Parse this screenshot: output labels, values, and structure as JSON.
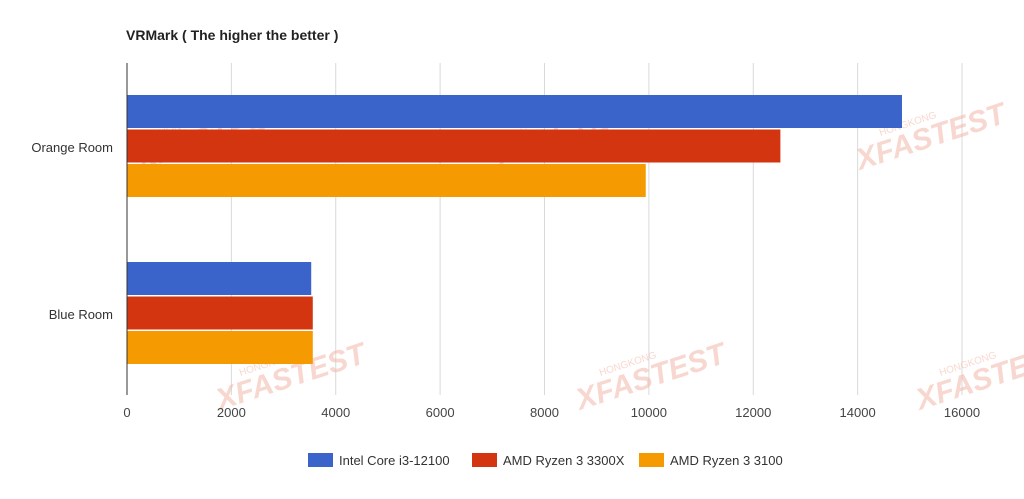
{
  "chart_data": {
    "type": "bar",
    "orientation": "horizontal",
    "title": "VRMark ( The higher the better )",
    "xlabel": "",
    "ylabel": "",
    "categories": [
      "Orange Room",
      "Blue Room"
    ],
    "series": [
      {
        "name": "Intel Core i3-12100",
        "color": "#3a64c9",
        "values": [
          14850,
          3530
        ]
      },
      {
        "name": "AMD Ryzen 3 3300X",
        "color": "#d23510",
        "values": [
          12520,
          3560
        ]
      },
      {
        "name": "AMD Ryzen 3 3100",
        "color": "#f59a00",
        "values": [
          9940,
          3560
        ]
      }
    ],
    "xlim": [
      0,
      16000
    ],
    "xticks": [
      0,
      2000,
      4000,
      6000,
      8000,
      10000,
      12000,
      14000,
      16000
    ],
    "xtick_labels": [
      "0",
      "2000",
      "4000",
      "6000",
      "8000",
      "10000",
      "12000",
      "14000",
      "16000"
    ],
    "grid": true,
    "legend_position": "bottom"
  },
  "watermark": {
    "text": "XFASTEST",
    "subtext": "HONGKONG",
    "color": "#f2b8a8"
  }
}
